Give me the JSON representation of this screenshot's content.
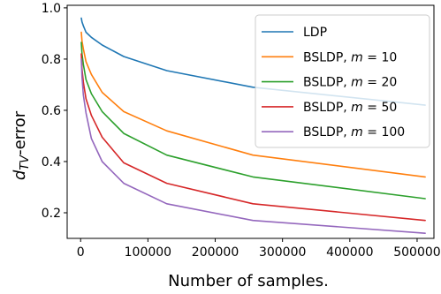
{
  "chart_data": {
    "type": "line",
    "title": "",
    "xlabel": "Number of samples.",
    "ylabel_main": "d",
    "ylabel_sub": "TV",
    "ylabel_suffix": "-error",
    "xlim": [
      -20000,
      525000
    ],
    "ylim": [
      0.1,
      1.01
    ],
    "xticks": [
      0,
      100000,
      200000,
      300000,
      400000,
      500000
    ],
    "xtick_labels": [
      "0",
      "100000",
      "200000",
      "300000",
      "400000",
      "500000"
    ],
    "yticks": [
      0.2,
      0.4,
      0.6,
      0.8,
      1.0
    ],
    "ytick_labels": [
      "0.2",
      "0.4",
      "0.6",
      "0.8",
      "1.0"
    ],
    "grid": false,
    "legend_position": "top-right",
    "x": [
      1000,
      2000,
      4000,
      8000,
      16000,
      32000,
      64000,
      128000,
      256000,
      512000
    ],
    "series": [
      {
        "name": "LDP",
        "color": "#1f77b4",
        "values": [
          0.96,
          0.945,
          0.93,
          0.905,
          0.885,
          0.855,
          0.81,
          0.755,
          0.69,
          0.62
        ]
      },
      {
        "name": "BSLDP, m = 10",
        "color": "#ff7f0e",
        "values": [
          0.905,
          0.87,
          0.84,
          0.79,
          0.74,
          0.67,
          0.595,
          0.52,
          0.425,
          0.34
        ]
      },
      {
        "name": "BSLDP, m = 20",
        "color": "#2ca02c",
        "values": [
          0.865,
          0.82,
          0.78,
          0.72,
          0.665,
          0.595,
          0.51,
          0.425,
          0.34,
          0.255
        ]
      },
      {
        "name": "BSLDP, m = 50",
        "color": "#d62728",
        "values": [
          0.82,
          0.76,
          0.71,
          0.645,
          0.58,
          0.495,
          0.395,
          0.315,
          0.235,
          0.17
        ]
      },
      {
        "name": "BSLDP, m = 100",
        "color": "#9467bd",
        "values": [
          0.8,
          0.73,
          0.66,
          0.59,
          0.49,
          0.4,
          0.315,
          0.235,
          0.17,
          0.12
        ]
      }
    ],
    "legend": [
      {
        "label": "LDP",
        "prefix": "LDP",
        "var": "",
        "eq": ""
      },
      {
        "label": "BSLDP, m = 10",
        "prefix": "BSLDP, ",
        "var": "m",
        "eq": " = 10"
      },
      {
        "label": "BSLDP, m = 20",
        "prefix": "BSLDP, ",
        "var": "m",
        "eq": " = 20"
      },
      {
        "label": "BSLDP, m = 50",
        "prefix": "BSLDP, ",
        "var": "m",
        "eq": " = 50"
      },
      {
        "label": "BSLDP, m = 100",
        "prefix": "BSLDP, ",
        "var": "m",
        "eq": " = 100"
      }
    ]
  }
}
